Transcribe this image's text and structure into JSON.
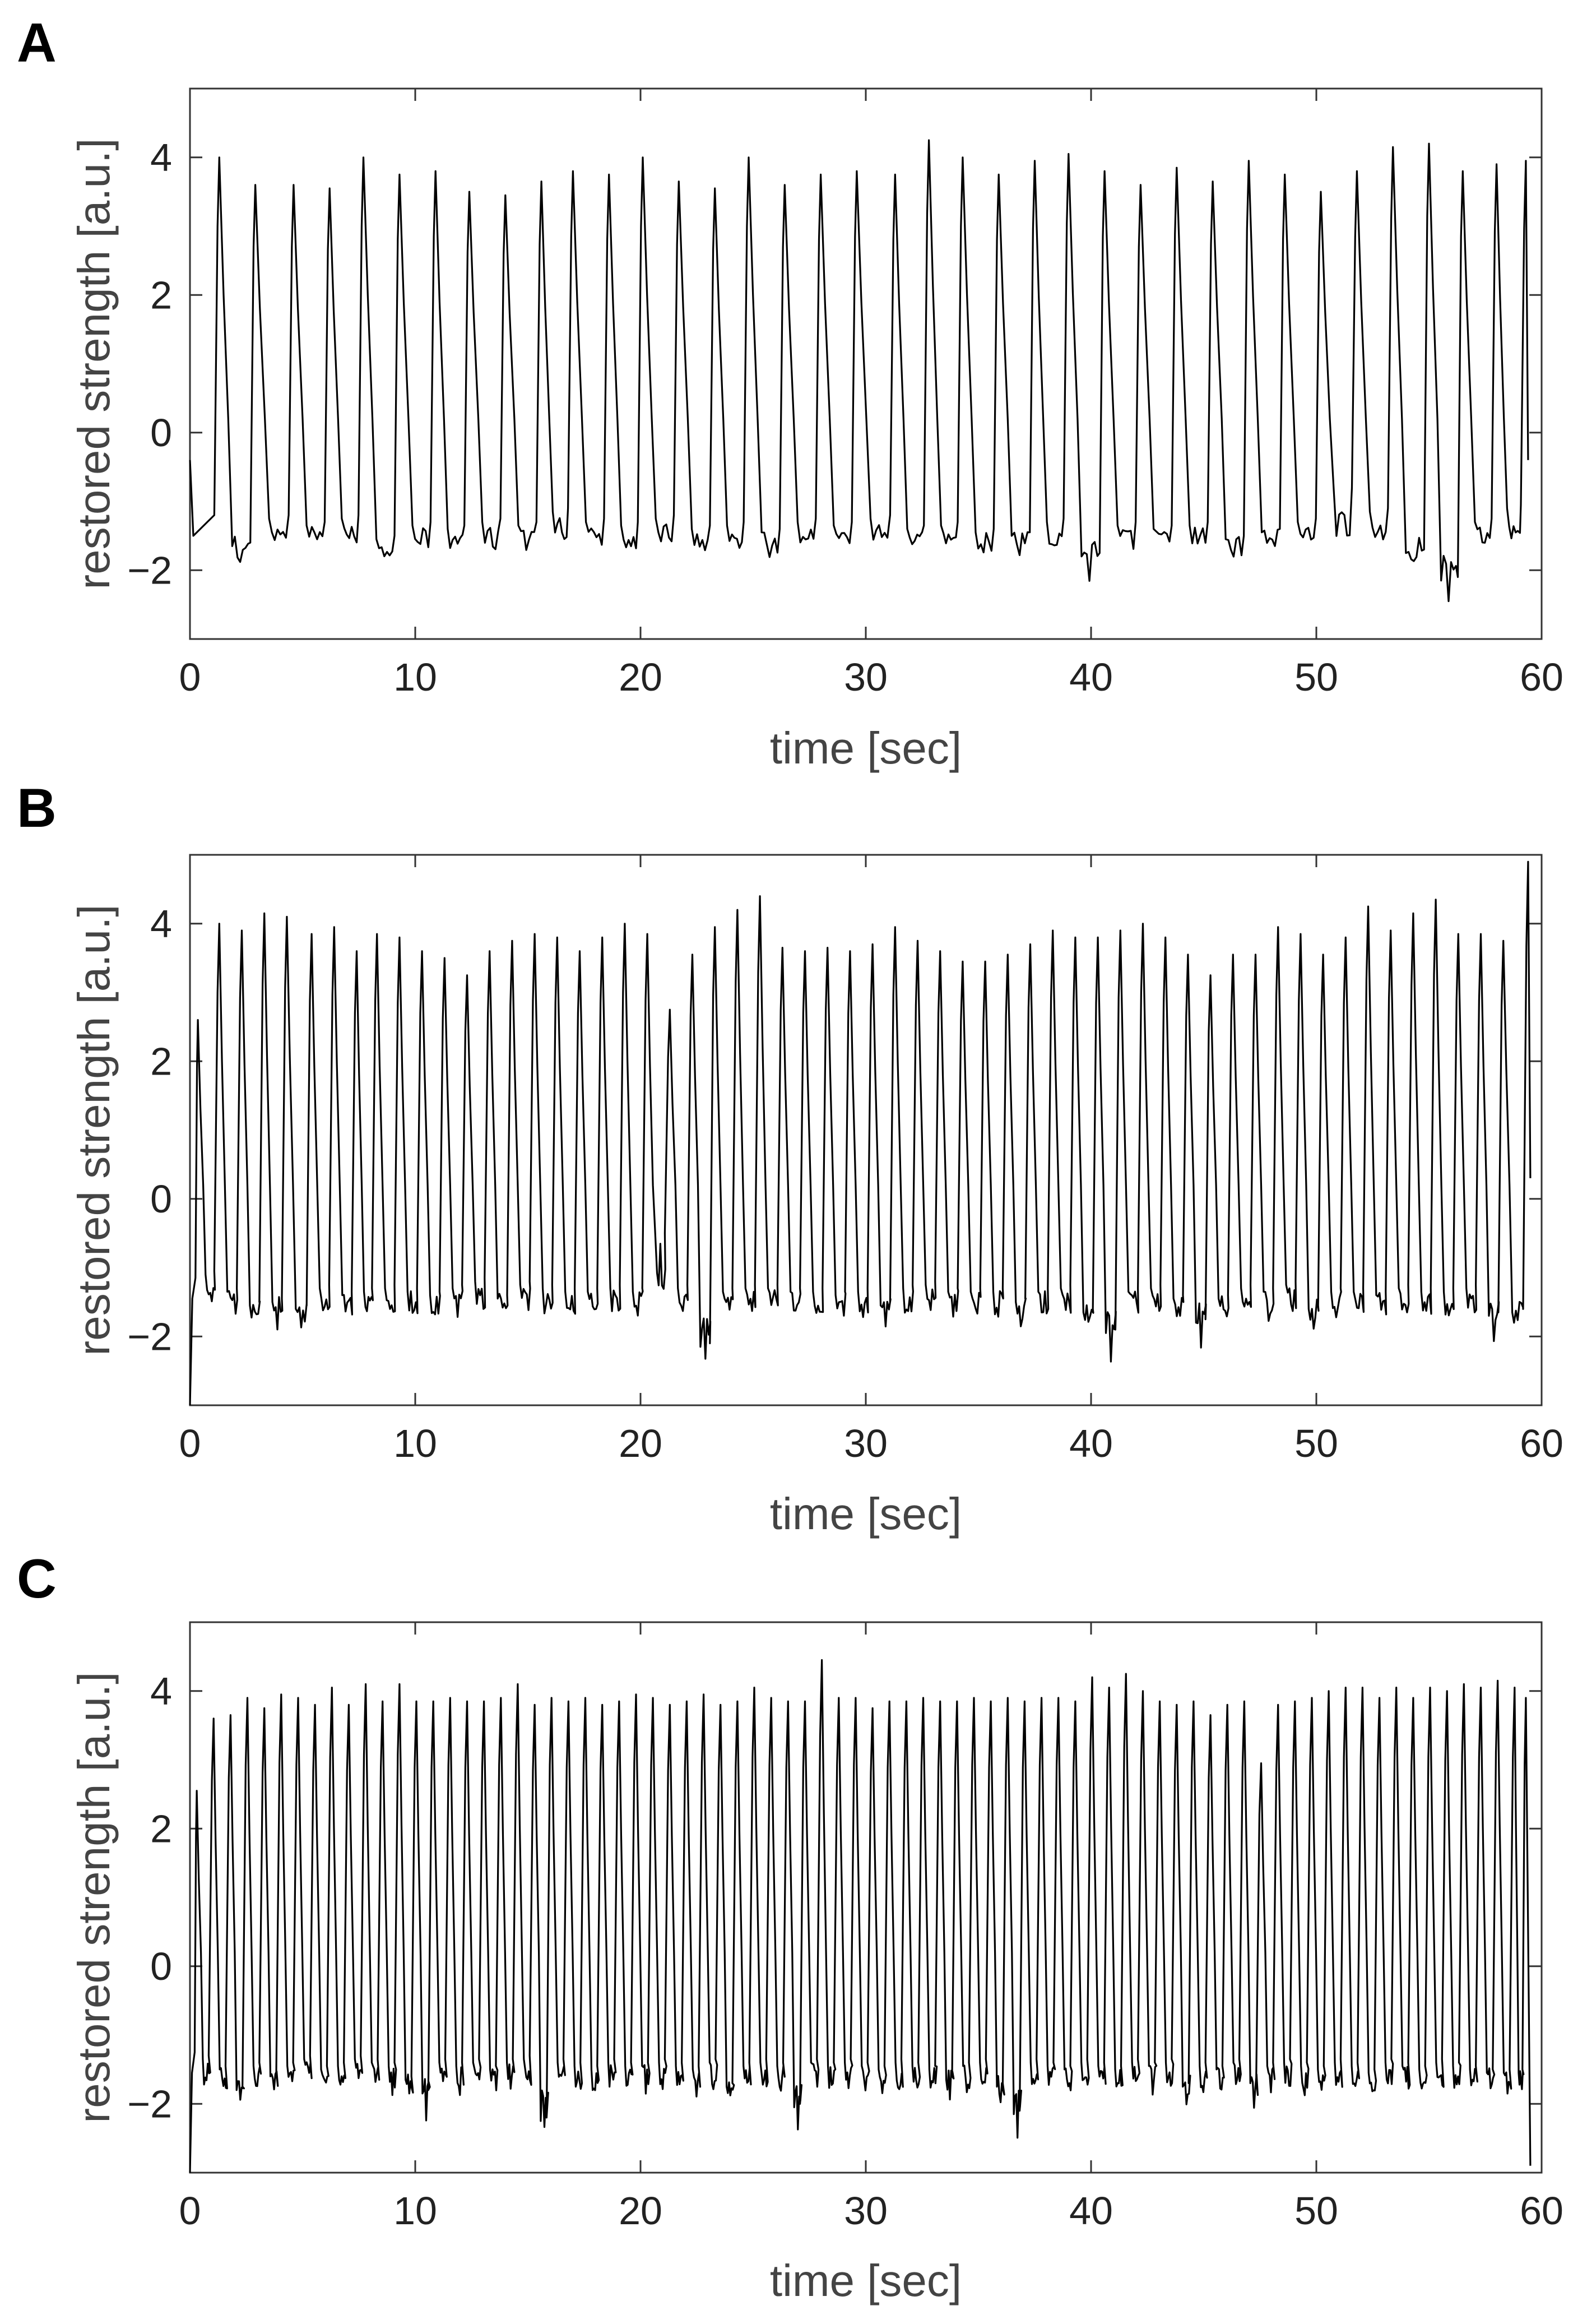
{
  "figure": {
    "colors": {
      "trace": "#000000",
      "axis": "#333333",
      "tick_text": "#222222",
      "label_text": "#444444",
      "background": "#ffffff"
    }
  },
  "chart_data": [
    {
      "panel": "A",
      "type": "line",
      "title": "",
      "xlabel": "time [sec]",
      "ylabel": "restored strength [a.u.]",
      "xlim": [
        0,
        60
      ],
      "ylim": [
        -3,
        5
      ],
      "xticks": [
        0,
        10,
        20,
        30,
        40,
        50,
        60
      ],
      "xtick_labels": [
        "0",
        "10",
        "20",
        "30",
        "40",
        "50",
        "60"
      ],
      "yticks": [
        -2,
        0,
        2,
        4
      ],
      "ytick_labels": [
        "−2",
        "0",
        "2",
        "4"
      ],
      "grid": false,
      "waveform": {
        "start_value": -0.4,
        "first_peak": 1.3,
        "end_time": 59.4,
        "end_value": -0.4,
        "baseline": -1.5
      },
      "peak_times": [
        1.3,
        2.9,
        4.6,
        6.2,
        7.7,
        9.3,
        10.9,
        12.4,
        14.0,
        15.6,
        17.0,
        18.6,
        20.1,
        21.7,
        23.3,
        24.8,
        26.4,
        28.0,
        29.6,
        31.3,
        32.8,
        34.3,
        35.9,
        37.5,
        39.0,
        40.6,
        42.2,
        43.8,
        45.4,
        47.0,
        48.6,
        50.2,
        51.8,
        53.4,
        55.0,
        56.5,
        58.0,
        59.3
      ],
      "peak_values": [
        4.0,
        3.6,
        3.6,
        3.55,
        4.0,
        3.75,
        3.8,
        3.5,
        3.45,
        3.65,
        3.8,
        3.75,
        4.0,
        3.65,
        3.55,
        4.0,
        3.6,
        3.75,
        3.8,
        3.75,
        4.25,
        4.0,
        3.75,
        3.95,
        4.05,
        3.8,
        3.6,
        3.85,
        3.65,
        3.95,
        3.75,
        3.5,
        3.8,
        4.15,
        4.2,
        3.8,
        3.9,
        3.95
      ],
      "trough_values": [
        -1.9,
        -1.5,
        -1.6,
        -1.5,
        -1.8,
        -1.6,
        -1.65,
        -1.55,
        -1.6,
        -1.4,
        -1.55,
        -1.6,
        -1.5,
        -1.65,
        -1.6,
        -1.7,
        -1.55,
        -1.6,
        -1.5,
        -1.65,
        -1.6,
        -1.7,
        -1.75,
        -1.55,
        -2.05,
        -1.6,
        -1.65,
        -1.6,
        -1.8,
        -1.7,
        -1.55,
        -1.1,
        -1.4,
        -2.0,
        -2.4,
        -1.55,
        -1.35
      ]
    },
    {
      "panel": "B",
      "type": "line",
      "title": "",
      "xlabel": "time [sec]",
      "ylabel": "restored strength [a.u.]",
      "xlim": [
        0,
        60
      ],
      "ylim": [
        -3,
        5
      ],
      "xticks": [
        0,
        10,
        20,
        30,
        40,
        50,
        60
      ],
      "xtick_labels": [
        "0",
        "10",
        "20",
        "30",
        "40",
        "50",
        "60"
      ],
      "yticks": [
        -2,
        0,
        2,
        4
      ],
      "ytick_labels": [
        "−2",
        "0",
        "2",
        "4"
      ],
      "grid": false,
      "waveform": {
        "start_value": -3.0,
        "first_peak": 0.35,
        "end_time": 59.5,
        "end_value": 0.3,
        "baseline": -1.45
      },
      "peak_times": [
        0.35,
        1.3,
        2.3,
        3.3,
        4.3,
        5.4,
        6.4,
        7.4,
        8.3,
        9.3,
        10.3,
        11.3,
        12.3,
        13.3,
        14.3,
        15.3,
        16.3,
        17.3,
        18.3,
        19.3,
        20.3,
        21.3,
        22.3,
        23.3,
        24.3,
        25.3,
        26.3,
        27.3,
        28.3,
        29.3,
        30.3,
        31.3,
        32.3,
        33.3,
        34.3,
        35.3,
        36.3,
        37.3,
        38.3,
        39.3,
        40.3,
        41.3,
        42.3,
        43.3,
        44.3,
        45.3,
        46.3,
        47.3,
        48.3,
        49.3,
        50.3,
        51.3,
        52.3,
        53.3,
        54.3,
        55.3,
        56.3,
        57.3,
        58.3,
        59.4
      ],
      "peak_values": [
        2.6,
        4.0,
        3.9,
        4.15,
        4.1,
        3.85,
        3.95,
        3.6,
        3.85,
        3.8,
        3.6,
        3.5,
        3.25,
        3.6,
        3.75,
        3.85,
        3.8,
        3.6,
        3.8,
        4.0,
        3.85,
        2.75,
        3.55,
        3.95,
        4.2,
        4.4,
        3.65,
        3.6,
        3.65,
        3.6,
        3.7,
        3.95,
        3.75,
        3.6,
        3.45,
        3.45,
        3.55,
        3.7,
        3.9,
        3.8,
        3.8,
        3.9,
        4.0,
        3.8,
        3.55,
        3.25,
        3.55,
        3.55,
        3.95,
        3.85,
        3.55,
        3.8,
        4.25,
        3.9,
        4.15,
        4.35,
        3.85,
        3.85,
        3.75,
        4.9
      ],
      "trough_values": [
        -1.35,
        -1.6,
        -1.8,
        -1.75,
        -1.85,
        -1.55,
        -1.65,
        -1.6,
        -1.55,
        -1.6,
        -1.65,
        -1.55,
        -1.45,
        -1.7,
        -1.5,
        -1.55,
        -1.6,
        -1.6,
        -1.55,
        -1.6,
        -0.8,
        -1.55,
        -2.4,
        -1.6,
        -1.55,
        -1.55,
        -1.6,
        -1.6,
        -1.65,
        -1.6,
        -1.8,
        -1.55,
        -1.5,
        -1.6,
        -1.6,
        -1.6,
        -1.75,
        -1.6,
        -1.55,
        -1.9,
        -2.2,
        -1.6,
        -1.55,
        -1.7,
        -2.05,
        -1.7,
        -1.55,
        -1.6,
        -1.5,
        -1.85,
        -1.6,
        -1.6,
        -1.65,
        -1.55,
        -1.6,
        -1.6,
        -1.55,
        -1.95,
        -1.9
      ]
    },
    {
      "panel": "C",
      "type": "line",
      "title": "",
      "xlabel": "time [sec]",
      "ylabel": "restored strength [a.u.]",
      "xlim": [
        0,
        60
      ],
      "ylim": [
        -3,
        5
      ],
      "xticks": [
        0,
        10,
        20,
        30,
        40,
        50,
        60
      ],
      "xtick_labels": [
        "0",
        "10",
        "20",
        "30",
        "40",
        "50",
        "60"
      ],
      "yticks": [
        -2,
        0,
        2,
        4
      ],
      "ytick_labels": [
        "−2",
        "0",
        "2",
        "4"
      ],
      "grid": false,
      "waveform": {
        "start_value": -3.0,
        "first_peak": 0.3,
        "end_time": 59.5,
        "end_value": -2.9,
        "baseline": -1.55
      },
      "peak_times": [
        0.3,
        1.05,
        1.8,
        2.55,
        3.3,
        4.05,
        4.8,
        5.55,
        6.3,
        7.05,
        7.8,
        8.55,
        9.3,
        10.05,
        10.8,
        11.55,
        12.3,
        13.05,
        13.8,
        14.55,
        15.3,
        16.05,
        16.8,
        17.55,
        18.3,
        19.05,
        19.8,
        20.55,
        21.3,
        22.05,
        22.8,
        23.55,
        24.3,
        25.05,
        25.8,
        26.55,
        27.3,
        28.05,
        28.8,
        29.55,
        30.3,
        31.05,
        31.8,
        32.55,
        33.3,
        34.05,
        34.8,
        35.55,
        36.3,
        37.05,
        37.8,
        38.55,
        39.3,
        40.05,
        40.8,
        41.55,
        42.3,
        43.05,
        43.8,
        44.55,
        45.3,
        46.05,
        46.8,
        47.55,
        48.3,
        49.05,
        49.8,
        50.55,
        51.3,
        52.05,
        52.8,
        53.55,
        54.3,
        55.05,
        55.8,
        56.55,
        57.3,
        58.05,
        58.8,
        59.3
      ],
      "peak_values": [
        2.55,
        3.6,
        3.65,
        3.9,
        3.75,
        3.95,
        3.9,
        3.8,
        4.05,
        3.8,
        4.1,
        3.85,
        4.1,
        3.85,
        3.85,
        3.9,
        3.85,
        3.85,
        3.9,
        4.1,
        3.8,
        3.9,
        3.85,
        3.9,
        3.8,
        3.85,
        3.95,
        3.9,
        3.8,
        3.85,
        3.95,
        3.8,
        3.85,
        4.05,
        3.9,
        3.85,
        3.85,
        4.45,
        3.9,
        3.9,
        3.75,
        3.85,
        3.85,
        3.9,
        3.85,
        3.85,
        3.9,
        3.85,
        3.9,
        3.85,
        3.9,
        3.9,
        3.85,
        4.2,
        4.05,
        4.25,
        4.0,
        3.85,
        3.8,
        3.85,
        3.65,
        3.8,
        3.85,
        2.95,
        3.8,
        3.85,
        3.9,
        4.0,
        4.05,
        4.05,
        3.9,
        4.05,
        3.9,
        4.05,
        4.0,
        4.1,
        4.05,
        4.15,
        4.05,
        3.9
      ],
      "trough_values": [
        -1.6,
        -1.75,
        -2.05,
        -1.7,
        -1.85,
        -1.7,
        -1.6,
        -1.75,
        -1.7,
        -1.6,
        -1.65,
        -1.7,
        -1.9,
        -2.1,
        -1.65,
        -1.7,
        -1.65,
        -1.75,
        -1.65,
        -1.6,
        -2.5,
        -1.65,
        -1.7,
        -1.75,
        -1.65,
        -1.7,
        -1.7,
        -1.65,
        -1.7,
        -1.75,
        -1.65,
        -2.0,
        -1.7,
        -1.65,
        -1.7,
        -2.3,
        -1.65,
        -1.7,
        -1.65,
        -1.7,
        -1.75,
        -1.65,
        -1.7,
        -1.75,
        -1.9,
        -1.7,
        -1.65,
        -2.0,
        -2.4,
        -1.65,
        -1.7,
        -1.75,
        -1.65,
        -1.7,
        -1.75,
        -1.65,
        -1.7,
        -1.65,
        -2.0,
        -1.7,
        -1.75,
        -1.65,
        -1.95,
        -1.7,
        -1.65,
        -1.7,
        -1.75,
        -1.65,
        -1.7,
        -1.8,
        -1.65,
        -1.7,
        -1.75,
        -1.65,
        -1.7,
        -1.75,
        -1.8,
        -1.8,
        -1.8
      ]
    }
  ]
}
